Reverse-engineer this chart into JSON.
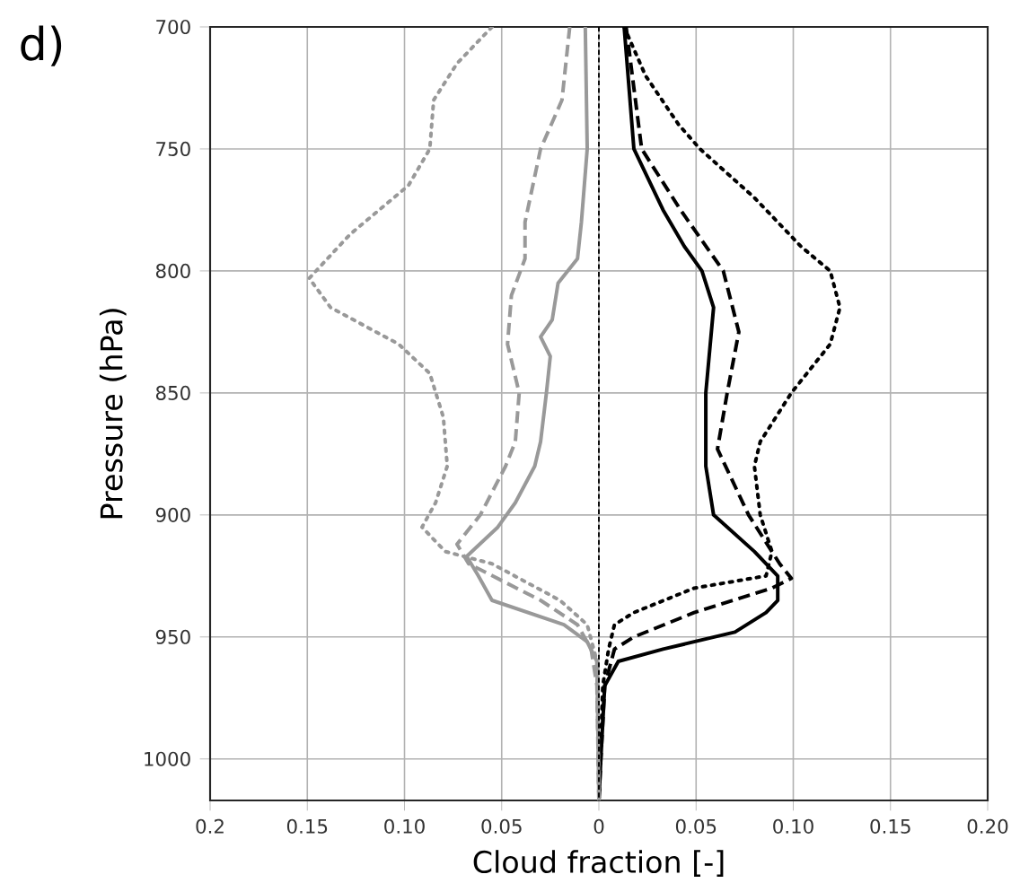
{
  "chart_data": {
    "type": "line",
    "xlabel": "Cloud fraction [-]",
    "ylabel": "Pressure (hPa)",
    "annotations": [
      "d)"
    ],
    "xlim": [
      -0.2,
      0.2
    ],
    "ylim": [
      1017,
      700
    ],
    "xticks": [
      {
        "value": -0.2,
        "label": "0.2"
      },
      {
        "value": -0.15,
        "label": "0.15"
      },
      {
        "value": -0.1,
        "label": "0.10"
      },
      {
        "value": -0.05,
        "label": "0.05"
      },
      0,
      0.05,
      {
        "value": 0.1,
        "label": "0.10"
      },
      0.15,
      {
        "value": 0.2,
        "label": "0.20"
      }
    ],
    "yticks": [
      700,
      750,
      800,
      850,
      900,
      950,
      1000
    ],
    "grid": true,
    "ref_lines": [
      {
        "axis": "x",
        "value": 0,
        "color": "#000000",
        "line_style": "dashed"
      }
    ],
    "series": [
      {
        "color": "#000000",
        "line_style": "solid",
        "x": [
          0.013,
          0.018,
          0.033,
          0.044,
          0.053,
          0.059,
          0.055,
          0.055,
          0.059,
          0.08,
          0.092,
          0.092,
          0.086,
          0.07,
          0.033,
          0.01,
          0.003,
          0.001,
          0
        ],
        "values": [
          700,
          750,
          775,
          790,
          800,
          815,
          850,
          880,
          900,
          915,
          925,
          935,
          940,
          948,
          955,
          960,
          970,
          1000,
          1017
        ]
      },
      {
        "color": "#000000",
        "line_style": "dashed",
        "x": [
          0.014,
          0.022,
          0.042,
          0.064,
          0.072,
          0.066,
          0.061,
          0.077,
          0.093,
          0.099,
          0.089,
          0.049,
          0.018,
          0.008,
          0.003,
          0.001,
          0
        ],
        "values": [
          700,
          750,
          775,
          800,
          825,
          850,
          873,
          900,
          920,
          926,
          930,
          940,
          950,
          955,
          970,
          1000,
          1017
        ]
      },
      {
        "color": "#000000",
        "line_style": "dotted",
        "x": [
          0.013,
          0.024,
          0.041,
          0.052,
          0.08,
          0.104,
          0.119,
          0.124,
          0.119,
          0.099,
          0.083,
          0.08,
          0.083,
          0.089,
          0.086,
          0.049,
          0.018,
          0.008,
          0.005,
          0.002,
          0
        ],
        "values": [
          700,
          720,
          740,
          750,
          770,
          790,
          800,
          815,
          830,
          850,
          870,
          880,
          900,
          915,
          925,
          930,
          940,
          945,
          955,
          970,
          1017
        ]
      },
      {
        "color": "#999999",
        "line_style": "solid",
        "x": [
          -0.007,
          -0.006,
          -0.009,
          -0.011,
          -0.021,
          -0.024,
          -0.03,
          -0.025,
          -0.027,
          -0.03,
          -0.033,
          -0.043,
          -0.052,
          -0.068,
          -0.062,
          -0.055,
          -0.018,
          -0.006,
          -0.001,
          0
        ],
        "values": [
          700,
          750,
          780,
          795,
          805,
          820,
          827,
          835,
          850,
          870,
          880,
          895,
          905,
          917,
          925,
          935,
          945,
          952,
          960,
          1017
        ]
      },
      {
        "color": "#999999",
        "line_style": "dashed",
        "x": [
          -0.015,
          -0.019,
          -0.03,
          -0.038,
          -0.038,
          -0.045,
          -0.047,
          -0.041,
          -0.043,
          -0.048,
          -0.061,
          -0.073,
          -0.067,
          -0.03,
          -0.011,
          -0.004,
          -0.001,
          0
        ],
        "values": [
          700,
          730,
          750,
          780,
          795,
          810,
          830,
          850,
          870,
          880,
          900,
          912,
          920,
          935,
          945,
          955,
          970,
          1017
        ]
      },
      {
        "color": "#999999",
        "line_style": "dotted",
        "x": [
          -0.055,
          -0.073,
          -0.085,
          -0.087,
          -0.098,
          -0.113,
          -0.128,
          -0.149,
          -0.138,
          -0.103,
          -0.087,
          -0.08,
          -0.078,
          -0.084,
          -0.091,
          -0.079,
          -0.055,
          -0.02,
          -0.006,
          -0.001,
          0
        ],
        "values": [
          700,
          715,
          730,
          750,
          765,
          775,
          785,
          803,
          815,
          830,
          842,
          860,
          880,
          895,
          905,
          915,
          920,
          935,
          945,
          960,
          1017
        ]
      }
    ]
  }
}
